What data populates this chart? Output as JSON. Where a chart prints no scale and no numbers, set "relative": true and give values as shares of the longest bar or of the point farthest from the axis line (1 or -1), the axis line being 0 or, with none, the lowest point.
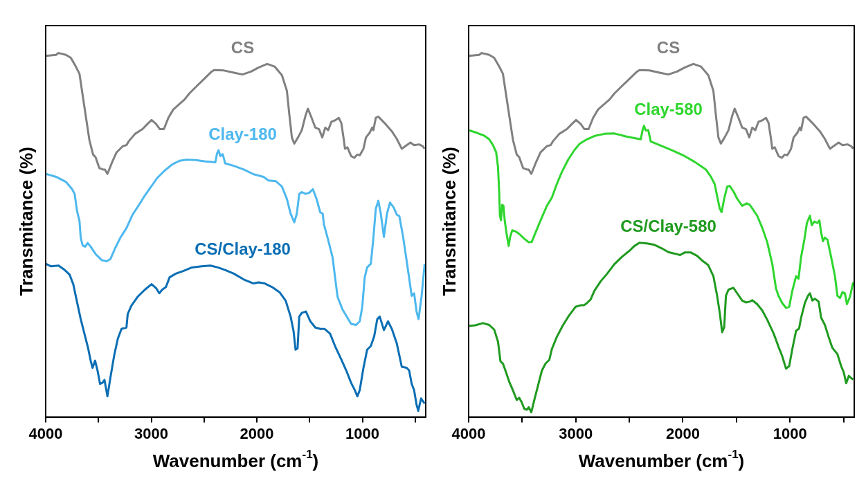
{
  "chart_data": [
    {
      "type": "line",
      "relative": true,
      "xlabel": "Wavenumber (cm$^{-1}$)",
      "ylabel": "Transmitance (%)",
      "xlim": [
        4000,
        400
      ],
      "xticks": [
        4000,
        {
          "value": 3500,
          "label": null
        },
        3000,
        {
          "value": 2500,
          "label": null
        },
        2000,
        {
          "value": 1500,
          "label": null
        },
        1000,
        {
          "value": 500,
          "label": null
        }
      ],
      "tick_labels": "x",
      "legend": false,
      "grid": false,
      "marker": "none",
      "series": [
        {
          "name": "CS",
          "color": "#808080",
          "x": [
            4000,
            3902,
            3878,
            3808,
            3762,
            3715,
            3680,
            3656,
            3621,
            3586,
            3551,
            3528,
            3492,
            3457,
            3439,
            3415,
            3375,
            3329,
            3270,
            3235,
            3212,
            3153,
            3083,
            3036,
            2997,
            2954,
            2919,
            2880,
            2838,
            2791,
            2732,
            2685,
            2639,
            2580,
            2498,
            2428,
            2405,
            2311,
            2218,
            2136,
            2054,
            1984,
            1902,
            1832,
            1762,
            1715,
            1691,
            1668,
            1645,
            1610,
            1574,
            1539,
            1516,
            1481,
            1446,
            1411,
            1380,
            1352,
            1324,
            1294,
            1259,
            1224,
            1200,
            1177,
            1165,
            1142,
            1107,
            1076,
            1048,
            1025,
            990,
            966,
            931,
            908,
            896,
            873,
            849,
            791,
            721,
            674,
            627,
            580,
            545,
            510,
            463,
            428,
            410
          ],
          "values": [
            0.992,
            0.995,
            1.0,
            0.995,
            0.987,
            0.963,
            0.943,
            0.896,
            0.828,
            0.761,
            0.721,
            0.714,
            0.684,
            0.68,
            0.68,
            0.668,
            0.697,
            0.727,
            0.744,
            0.747,
            0.758,
            0.778,
            0.791,
            0.805,
            0.816,
            0.805,
            0.791,
            0.791,
            0.822,
            0.845,
            0.86,
            0.872,
            0.889,
            0.906,
            0.929,
            0.949,
            0.953,
            0.952,
            0.946,
            0.941,
            0.949,
            0.96,
            0.97,
            0.963,
            0.939,
            0.896,
            0.828,
            0.768,
            0.751,
            0.768,
            0.788,
            0.828,
            0.847,
            0.822,
            0.795,
            0.791,
            0.768,
            0.795,
            0.788,
            0.811,
            0.815,
            0.822,
            0.808,
            0.764,
            0.737,
            0.741,
            0.717,
            0.712,
            0.721,
            0.719,
            0.737,
            0.768,
            0.781,
            0.795,
            0.788,
            0.822,
            0.825,
            0.808,
            0.785,
            0.764,
            0.737,
            0.747,
            0.754,
            0.747,
            0.749,
            0.744,
            0.737
          ]
        },
        {
          "name": "Clay-180",
          "color": "#4db8ee",
          "x": [
            4000,
            3902,
            3808,
            3750,
            3726,
            3703,
            3680,
            3668,
            3649,
            3626,
            3602,
            3574,
            3528,
            3469,
            3422,
            3387,
            3340,
            3294,
            3235,
            3177,
            3118,
            3060,
            3001,
            2943,
            2873,
            2802,
            2732,
            2662,
            2580,
            2487,
            2393,
            2377,
            2363,
            2346,
            2323,
            2300,
            2218,
            2124,
            2031,
            1937,
            1890,
            1820,
            1762,
            1715,
            1680,
            1645,
            1621,
            1598,
            1574,
            1539,
            1504,
            1469,
            1434,
            1399,
            1376,
            1364,
            1329,
            1282,
            1259,
            1235,
            1189,
            1142,
            1107,
            1060,
            1025,
            1001,
            978,
            955,
            920,
            896,
            873,
            849,
            826,
            796,
            767,
            739,
            704,
            674,
            650,
            616,
            580,
            545,
            533,
            510,
            487,
            468,
            440,
            410
          ],
          "values": [
            0.668,
            0.66,
            0.646,
            0.626,
            0.613,
            0.566,
            0.539,
            0.492,
            0.471,
            0.468,
            0.478,
            0.468,
            0.448,
            0.431,
            0.428,
            0.434,
            0.465,
            0.492,
            0.519,
            0.556,
            0.582,
            0.609,
            0.633,
            0.657,
            0.677,
            0.694,
            0.704,
            0.707,
            0.706,
            0.702,
            0.7,
            0.724,
            0.733,
            0.717,
            0.722,
            0.697,
            0.69,
            0.68,
            0.667,
            0.66,
            0.65,
            0.648,
            0.633,
            0.599,
            0.559,
            0.535,
            0.559,
            0.613,
            0.618,
            0.613,
            0.616,
            0.626,
            0.599,
            0.562,
            0.559,
            0.529,
            0.492,
            0.438,
            0.384,
            0.33,
            0.296,
            0.273,
            0.256,
            0.253,
            0.263,
            0.303,
            0.384,
            0.411,
            0.421,
            0.492,
            0.572,
            0.594,
            0.559,
            0.495,
            0.559,
            0.589,
            0.576,
            0.556,
            0.552,
            0.498,
            0.428,
            0.357,
            0.333,
            0.34,
            0.29,
            0.269,
            0.33,
            0.421
          ]
        },
        {
          "name": "CS/Clay-180",
          "color": "#0a6eb4",
          "x": [
            4000,
            3949,
            3878,
            3820,
            3773,
            3738,
            3703,
            3668,
            3633,
            3598,
            3574,
            3556,
            3532,
            3509,
            3485,
            3462,
            3443,
            3415,
            3387,
            3352,
            3317,
            3282,
            3235,
            3223,
            3188,
            3130,
            3060,
            2997,
            2954,
            2924,
            2896,
            2861,
            2826,
            2767,
            2697,
            2615,
            2522,
            2440,
            2370,
            2300,
            2218,
            2124,
            2031,
            1984,
            1925,
            1855,
            1785,
            1727,
            1680,
            1652,
            1633,
            1614,
            1598,
            1574,
            1535,
            1493,
            1446,
            1399,
            1357,
            1306,
            1259,
            1200,
            1153,
            1107,
            1072,
            1048,
            1025,
            990,
            955,
            920,
            888,
            859,
            836,
            796,
            757,
            721,
            674,
            627,
            580,
            557,
            533,
            510,
            487,
            471,
            444,
            410
          ],
          "values": [
            0.421,
            0.414,
            0.416,
            0.404,
            0.391,
            0.364,
            0.316,
            0.269,
            0.229,
            0.189,
            0.155,
            0.135,
            0.155,
            0.128,
            0.091,
            0.094,
            0.102,
            0.057,
            0.108,
            0.168,
            0.215,
            0.242,
            0.246,
            0.283,
            0.306,
            0.33,
            0.35,
            0.365,
            0.354,
            0.34,
            0.35,
            0.357,
            0.384,
            0.394,
            0.401,
            0.411,
            0.414,
            0.416,
            0.411,
            0.404,
            0.394,
            0.378,
            0.367,
            0.37,
            0.367,
            0.357,
            0.343,
            0.32,
            0.276,
            0.236,
            0.185,
            0.189,
            0.276,
            0.286,
            0.29,
            0.263,
            0.246,
            0.242,
            0.242,
            0.229,
            0.195,
            0.158,
            0.128,
            0.094,
            0.074,
            0.057,
            0.074,
            0.135,
            0.185,
            0.195,
            0.222,
            0.269,
            0.276,
            0.239,
            0.263,
            0.242,
            0.202,
            0.138,
            0.135,
            0.128,
            0.091,
            0.074,
            0.034,
            0.017,
            0.051,
            0.037
          ]
        }
      ]
    },
    {
      "type": "line",
      "relative": true,
      "xlabel": "Wavenumber (cm$^{-1}$)",
      "ylabel": "Transmitance (%)",
      "xlim": [
        4000,
        400
      ],
      "xticks": [
        4000,
        {
          "value": 3500,
          "label": null
        },
        3000,
        {
          "value": 2500,
          "label": null
        },
        2000,
        {
          "value": 1500,
          "label": null
        },
        1000,
        {
          "value": 500,
          "label": null
        }
      ],
      "tick_labels": "x",
      "legend": false,
      "grid": false,
      "marker": "none",
      "series": [
        {
          "name": "CS",
          "color": "#808080",
          "x": [
            4000,
            3902,
            3878,
            3808,
            3762,
            3715,
            3680,
            3656,
            3621,
            3586,
            3551,
            3528,
            3492,
            3457,
            3439,
            3415,
            3375,
            3329,
            3270,
            3235,
            3212,
            3153,
            3083,
            3036,
            2997,
            2954,
            2919,
            2880,
            2838,
            2791,
            2732,
            2685,
            2639,
            2580,
            2498,
            2428,
            2405,
            2311,
            2218,
            2136,
            2054,
            1984,
            1902,
            1832,
            1762,
            1715,
            1691,
            1668,
            1645,
            1610,
            1574,
            1539,
            1516,
            1481,
            1446,
            1411,
            1380,
            1352,
            1324,
            1294,
            1259,
            1224,
            1200,
            1177,
            1165,
            1142,
            1107,
            1076,
            1048,
            1025,
            990,
            966,
            931,
            908,
            896,
            873,
            849,
            791,
            721,
            674,
            627,
            580,
            545,
            510,
            463,
            428,
            410
          ],
          "values": [
            0.992,
            0.995,
            1.0,
            0.995,
            0.987,
            0.963,
            0.943,
            0.896,
            0.828,
            0.761,
            0.721,
            0.714,
            0.684,
            0.68,
            0.68,
            0.668,
            0.697,
            0.727,
            0.744,
            0.747,
            0.758,
            0.778,
            0.791,
            0.805,
            0.816,
            0.805,
            0.791,
            0.791,
            0.822,
            0.845,
            0.86,
            0.872,
            0.889,
            0.906,
            0.929,
            0.949,
            0.953,
            0.952,
            0.946,
            0.941,
            0.949,
            0.96,
            0.97,
            0.963,
            0.939,
            0.896,
            0.828,
            0.768,
            0.751,
            0.768,
            0.788,
            0.828,
            0.847,
            0.822,
            0.795,
            0.791,
            0.768,
            0.795,
            0.788,
            0.811,
            0.815,
            0.822,
            0.808,
            0.764,
            0.737,
            0.741,
            0.717,
            0.712,
            0.721,
            0.719,
            0.737,
            0.768,
            0.781,
            0.795,
            0.788,
            0.822,
            0.825,
            0.808,
            0.785,
            0.764,
            0.737,
            0.747,
            0.754,
            0.747,
            0.749,
            0.744,
            0.737
          ]
        },
        {
          "name": "Clay-580",
          "color": "#2ed62e",
          "x": [
            4000,
            3925,
            3855,
            3808,
            3773,
            3743,
            3726,
            3715,
            3708,
            3698,
            3687,
            3675,
            3663,
            3644,
            3626,
            3614,
            3593,
            3563,
            3528,
            3481,
            3439,
            3411,
            3375,
            3329,
            3270,
            3223,
            3177,
            3130,
            3071,
            3013,
            2966,
            2896,
            2826,
            2732,
            2639,
            2522,
            2393,
            2377,
            2363,
            2346,
            2323,
            2300,
            2218,
            2101,
            1984,
            1890,
            1820,
            1785,
            1738,
            1703,
            1680,
            1656,
            1638,
            1614,
            1586,
            1563,
            1528,
            1493,
            1446,
            1404,
            1376,
            1352,
            1306,
            1259,
            1212,
            1165,
            1130,
            1107,
            1072,
            1037,
            1007,
            978,
            943,
            920,
            896,
            866,
            842,
            814,
            796,
            772,
            744,
            725,
            709,
            692,
            674,
            650,
            616,
            580,
            557,
            533,
            510,
            487,
            468,
            440,
            410
          ],
          "values": [
            0.788,
            0.781,
            0.773,
            0.763,
            0.747,
            0.727,
            0.687,
            0.62,
            0.553,
            0.541,
            0.583,
            0.58,
            0.54,
            0.5,
            0.47,
            0.493,
            0.513,
            0.51,
            0.503,
            0.49,
            0.48,
            0.481,
            0.507,
            0.54,
            0.58,
            0.603,
            0.64,
            0.673,
            0.707,
            0.733,
            0.75,
            0.763,
            0.772,
            0.778,
            0.779,
            0.77,
            0.763,
            0.787,
            0.8,
            0.787,
            0.788,
            0.757,
            0.747,
            0.733,
            0.717,
            0.701,
            0.687,
            0.68,
            0.66,
            0.64,
            0.607,
            0.573,
            0.563,
            0.6,
            0.633,
            0.635,
            0.62,
            0.6,
            0.58,
            0.587,
            0.583,
            0.573,
            0.553,
            0.52,
            0.48,
            0.42,
            0.353,
            0.333,
            0.313,
            0.3,
            0.303,
            0.347,
            0.387,
            0.38,
            0.44,
            0.487,
            0.533,
            0.553,
            0.527,
            0.537,
            0.533,
            0.54,
            0.507,
            0.483,
            0.493,
            0.487,
            0.44,
            0.387,
            0.333,
            0.327,
            0.343,
            0.34,
            0.31,
            0.33,
            0.37
          ]
        },
        {
          "name": "CS/Clay-580",
          "color": "#1f9a1f",
          "x": [
            4000,
            3937,
            3867,
            3808,
            3761,
            3726,
            3703,
            3680,
            3656,
            3621,
            3586,
            3551,
            3528,
            3504,
            3481,
            3457,
            3439,
            3415,
            3387,
            3352,
            3317,
            3282,
            3247,
            3223,
            3177,
            3118,
            3060,
            3001,
            2954,
            2924,
            2896,
            2861,
            2826,
            2767,
            2709,
            2639,
            2569,
            2498,
            2452,
            2405,
            2335,
            2264,
            2194,
            2136,
            2077,
            2026,
            1984,
            1925,
            1867,
            1820,
            1762,
            1715,
            1680,
            1656,
            1633,
            1614,
            1598,
            1574,
            1528,
            1493,
            1446,
            1411,
            1376,
            1352,
            1306,
            1259,
            1212,
            1153,
            1107,
            1072,
            1037,
            1007,
            978,
            943,
            915,
            896,
            861,
            832,
            814,
            791,
            767,
            732,
            709,
            674,
            639,
            604,
            557,
            522,
            498,
            475,
            451,
            428,
            410
          ],
          "values": [
            0.25,
            0.252,
            0.258,
            0.253,
            0.24,
            0.207,
            0.153,
            0.147,
            0.127,
            0.097,
            0.073,
            0.047,
            0.053,
            0.04,
            0.023,
            0.02,
            0.027,
            0.013,
            0.047,
            0.087,
            0.127,
            0.147,
            0.157,
            0.187,
            0.22,
            0.253,
            0.28,
            0.303,
            0.307,
            0.307,
            0.313,
            0.323,
            0.347,
            0.373,
            0.393,
            0.42,
            0.44,
            0.457,
            0.47,
            0.479,
            0.477,
            0.473,
            0.463,
            0.453,
            0.449,
            0.445,
            0.452,
            0.452,
            0.443,
            0.43,
            0.417,
            0.387,
            0.333,
            0.287,
            0.233,
            0.247,
            0.333,
            0.35,
            0.355,
            0.34,
            0.32,
            0.315,
            0.317,
            0.321,
            0.31,
            0.293,
            0.267,
            0.23,
            0.193,
            0.167,
            0.133,
            0.14,
            0.187,
            0.237,
            0.243,
            0.273,
            0.313,
            0.333,
            0.34,
            0.32,
            0.325,
            0.317,
            0.273,
            0.253,
            0.22,
            0.19,
            0.173,
            0.14,
            0.123,
            0.093,
            0.113,
            0.107,
            0.103
          ]
        }
      ]
    }
  ]
}
